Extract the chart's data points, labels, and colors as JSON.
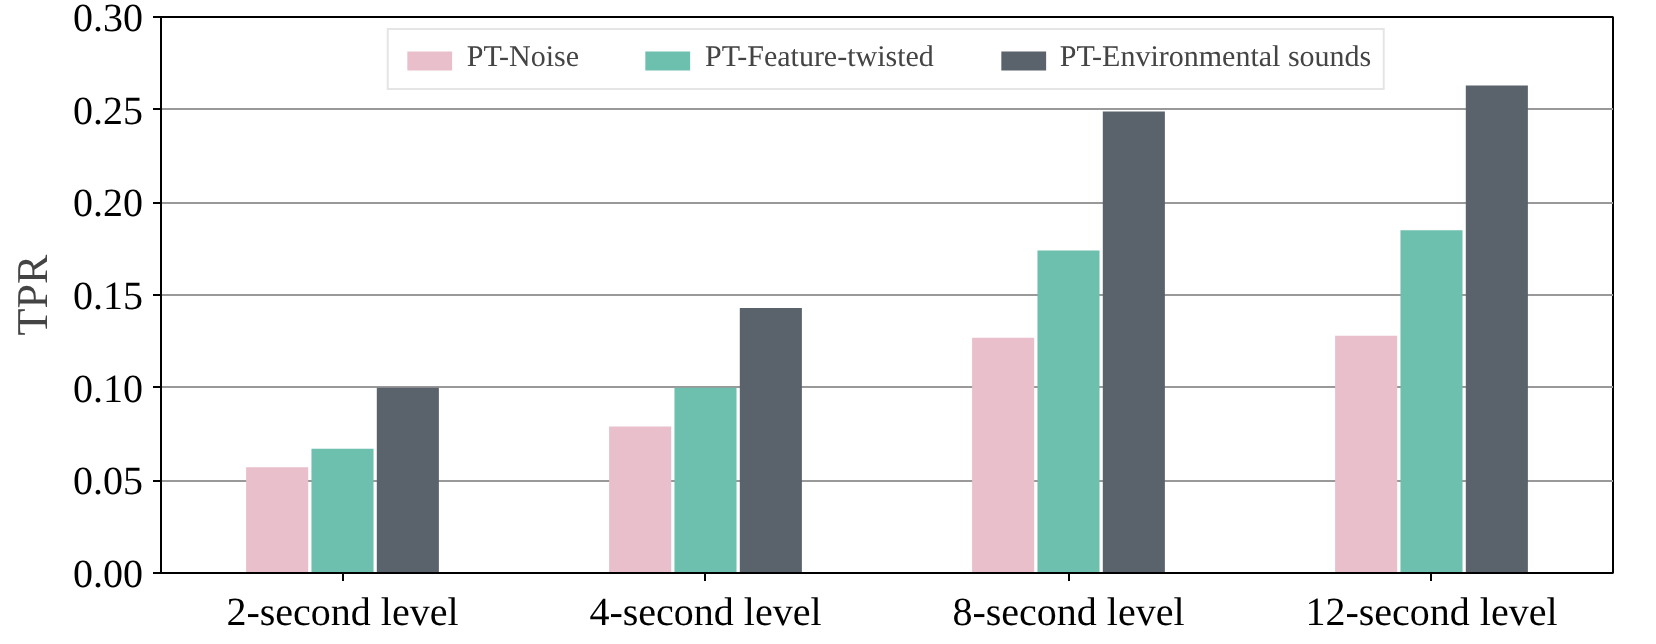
{
  "chart_data": {
    "type": "bar",
    "ylabel": "TPR",
    "categories": [
      "2-second level",
      "4-second level",
      "8-second level",
      "12-second level"
    ],
    "series": [
      {
        "name": "PT-Noise",
        "color": "#e8bfca",
        "values": [
          0.057,
          0.079,
          0.127,
          0.128
        ]
      },
      {
        "name": "PT-Feature-twisted",
        "color": "#6dbfae",
        "values": [
          0.067,
          0.1,
          0.174,
          0.185
        ]
      },
      {
        "name": "PT-Environmental sounds",
        "color": "#5a626c",
        "values": [
          0.1,
          0.143,
          0.249,
          0.263
        ]
      }
    ],
    "ylim": [
      0,
      0.3
    ],
    "yticks": [
      {
        "value": 0,
        "label": "0.00"
      },
      {
        "value": 0.05,
        "label": "0.05"
      },
      {
        "value": 0.1,
        "label": "0.10"
      },
      {
        "value": 0.15,
        "label": "0.15"
      },
      {
        "value": 0.2,
        "label": "0.20"
      },
      {
        "value": 0.25,
        "label": "0.25"
      },
      {
        "value": 0.3,
        "label": "0.30"
      }
    ],
    "grid": "y",
    "legend": "top"
  }
}
